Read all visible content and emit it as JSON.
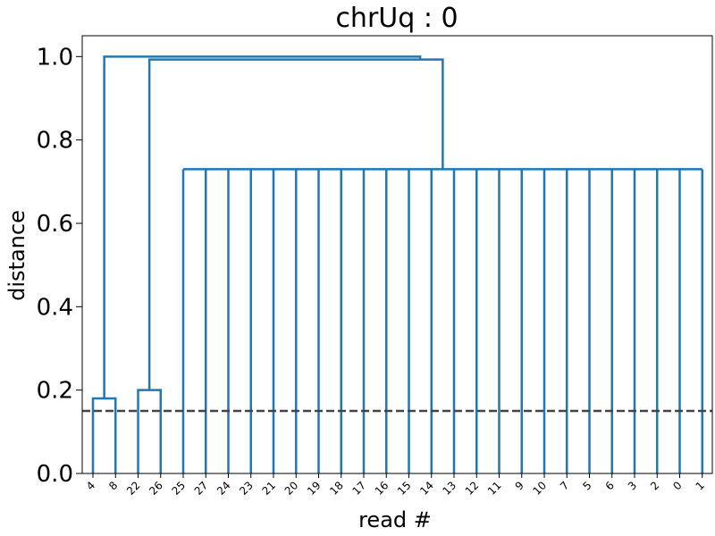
{
  "chart_data": {
    "type": "dendrogram",
    "title": "chrUq : 0",
    "xlabel": "read #",
    "ylabel": "distance",
    "ylim": [
      0.0,
      1.05
    ],
    "yticks": [
      0.0,
      0.2,
      0.4,
      0.6,
      0.8,
      1.0
    ],
    "ytick_labels": [
      "0.0",
      "0.2",
      "0.4",
      "0.6",
      "0.8",
      "1.0"
    ],
    "leaf_labels": [
      "4",
      "8",
      "22",
      "26",
      "25",
      "27",
      "24",
      "23",
      "21",
      "20",
      "19",
      "18",
      "17",
      "16",
      "15",
      "14",
      "13",
      "12",
      "11",
      "9",
      "10",
      "7",
      "5",
      "6",
      "3",
      "2",
      "0",
      "1"
    ],
    "threshold": 0.15,
    "link_color": "#1f77b4",
    "threshold_color": "#444444",
    "merges": [
      {
        "left": [
          0
        ],
        "right": [
          1
        ],
        "height": 0.18
      },
      {
        "left": [
          2
        ],
        "right": [
          3
        ],
        "height": 0.2
      },
      {
        "left": [
          4
        ],
        "right": [
          5,
          6,
          7,
          8,
          9,
          10,
          11,
          12,
          13,
          14,
          15,
          16,
          17,
          18,
          19,
          20,
          21,
          22,
          23,
          24,
          25,
          26,
          27
        ],
        "height": 0.73,
        "multi": true
      },
      {
        "left": [
          2,
          3
        ],
        "right": [
          4,
          5,
          6,
          7,
          8,
          9,
          10,
          11,
          12,
          13,
          14,
          15,
          16,
          17,
          18,
          19,
          20,
          21,
          22,
          23,
          24,
          25,
          26,
          27
        ],
        "height": 0.993
      },
      {
        "left": [
          0,
          1
        ],
        "right": [
          2,
          3,
          4,
          5,
          6,
          7,
          8,
          9,
          10,
          11,
          12,
          13,
          14,
          15,
          16,
          17,
          18,
          19,
          20,
          21,
          22,
          23,
          24,
          25,
          26,
          27
        ],
        "height": 1.0
      }
    ]
  }
}
